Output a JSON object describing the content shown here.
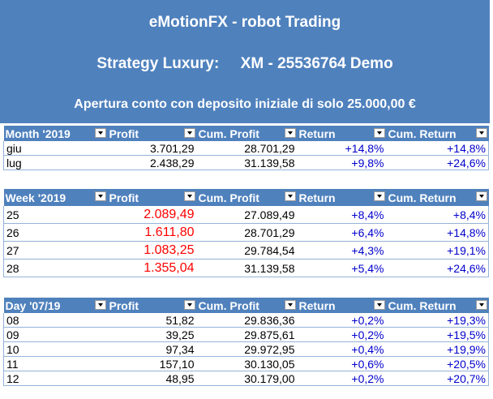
{
  "banner": {
    "title": "eMotionFX - robot Trading",
    "strategy": "Strategy Luxury:     XM - 25536764 Demo",
    "subtitle": "Apertura conto con deposito iniziale di solo 25.000,00 €"
  },
  "month_table": {
    "headers": [
      "Month '2019",
      "Profit",
      "Cum. Profit",
      "Return",
      "Cum. Return"
    ],
    "rows": [
      [
        "giu",
        "3.701,29",
        "28.701,29",
        "+14,8%",
        "+14,8%"
      ],
      [
        "lug",
        "2.438,29",
        "31.139,58",
        "+9,8%",
        "+24,6%"
      ]
    ]
  },
  "week_table": {
    "headers": [
      "Week '2019",
      "Profit",
      "Cum. Profit",
      "Return",
      "Cum. Return"
    ],
    "rows": [
      [
        "25",
        "2.089,49",
        "27.089,49",
        "+8,4%",
        "+8,4%"
      ],
      [
        "26",
        "1.611,80",
        "28.701,29",
        "+6,4%",
        "+14,8%"
      ],
      [
        "27",
        "1.083,25",
        "29.784,54",
        "+4,3%",
        "+19,1%"
      ],
      [
        "28",
        "1.355,04",
        "31.139,58",
        "+5,4%",
        "+24,6%"
      ]
    ]
  },
  "day_table": {
    "headers": [
      "Day '07/19",
      "Profit",
      "Cum. Profit",
      "Return",
      "Cum. Return"
    ],
    "rows": [
      [
        "08",
        "51,82",
        "29.836,36",
        "+0,2%",
        "+19,3%"
      ],
      [
        "09",
        "39,25",
        "29.875,61",
        "+0,2%",
        "+19,5%"
      ],
      [
        "10",
        "97,34",
        "29.972,95",
        "+0,4%",
        "+19,9%"
      ],
      [
        "11",
        "157,10",
        "30.130,05",
        "+0,6%",
        "+20,5%"
      ],
      [
        "12",
        "48,95",
        "30.179,00",
        "+0,2%",
        "+20,7%"
      ]
    ]
  },
  "colors": {
    "header_bg": "#4f81bd",
    "profit_highlight": "#ff0000",
    "return_text": "#0000cc"
  }
}
